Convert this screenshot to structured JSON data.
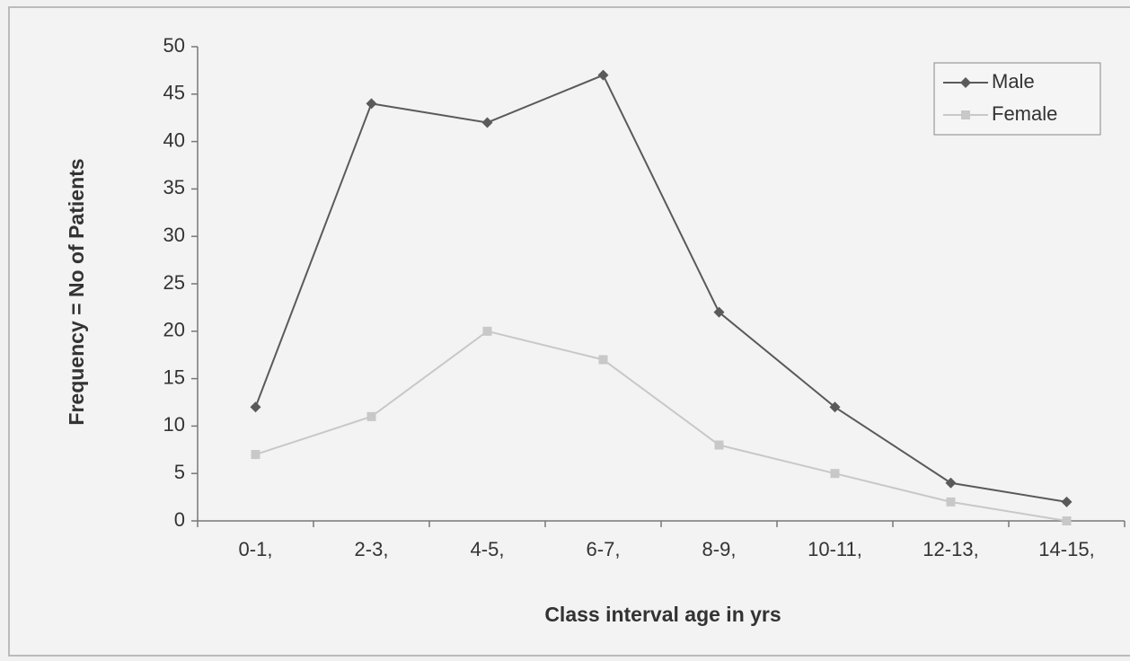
{
  "chart_data": {
    "type": "line",
    "x_label": "Class interval age in yrs",
    "y_label": "Frequency = No of Patients",
    "categories": [
      "0-1,",
      "2-3,",
      "4-5,",
      "6-7,",
      "8-9,",
      "10-11,",
      "12-13,",
      "14-15,"
    ],
    "series": [
      {
        "name": "Male",
        "color": "#5a5a5a",
        "values": [
          12,
          44,
          42,
          47,
          22,
          12,
          4,
          2
        ]
      },
      {
        "name": "Female",
        "color": "#c8c8c8",
        "values": [
          7,
          11,
          20,
          17,
          8,
          5,
          2,
          0
        ]
      }
    ],
    "ylim": [
      0,
      50
    ],
    "yticks": [
      0,
      5,
      10,
      15,
      20,
      25,
      30,
      35,
      40,
      45,
      50
    ],
    "legend": "upper right"
  }
}
